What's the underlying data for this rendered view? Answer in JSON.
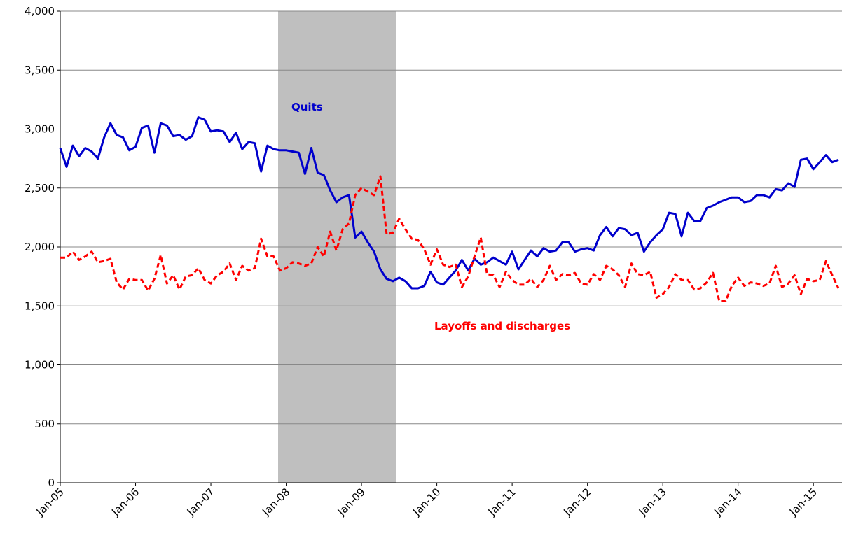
{
  "chart_data": {
    "type": "line",
    "categories": [
      "Jan-05",
      null,
      null,
      null,
      null,
      null,
      null,
      null,
      null,
      null,
      null,
      null,
      "Jan-06",
      null,
      null,
      null,
      null,
      null,
      null,
      null,
      null,
      null,
      null,
      null,
      "Jan-07",
      null,
      null,
      null,
      null,
      null,
      null,
      null,
      null,
      null,
      null,
      null,
      "Jan-08",
      null,
      null,
      null,
      null,
      null,
      null,
      null,
      null,
      null,
      null,
      null,
      "Jan-09",
      null,
      null,
      null,
      null,
      null,
      null,
      null,
      null,
      null,
      null,
      null,
      "Jan-10",
      null,
      null,
      null,
      null,
      null,
      null,
      null,
      null,
      null,
      null,
      null,
      "Jan-11",
      null,
      null,
      null,
      null,
      null,
      null,
      null,
      null,
      null,
      null,
      null,
      "Jan-12",
      null,
      null,
      null,
      null,
      null,
      null,
      null,
      null,
      null,
      null,
      null,
      "Jan-13",
      null,
      null,
      null,
      null,
      null,
      null,
      null,
      null,
      null,
      null,
      null,
      "Jan-14",
      null,
      null,
      null,
      null,
      null,
      null,
      null,
      null,
      null,
      null,
      null,
      "Jan-15",
      null,
      null,
      null,
      null
    ],
    "series": [
      {
        "name": "Quits",
        "color": "#0000cc",
        "dash": false,
        "values": [
          2840,
          2680,
          2860,
          2770,
          2840,
          2810,
          2750,
          2930,
          3050,
          2950,
          2930,
          2820,
          2850,
          3010,
          3030,
          2800,
          3050,
          3030,
          2940,
          2950,
          2910,
          2940,
          3100,
          3080,
          2980,
          2990,
          2980,
          2890,
          2970,
          2830,
          2890,
          2880,
          2640,
          2860,
          2830,
          2820,
          2820,
          2810,
          2800,
          2620,
          2840,
          2630,
          2610,
          2480,
          2380,
          2420,
          2440,
          2080,
          2130,
          2040,
          1960,
          1810,
          1730,
          1710,
          1740,
          1710,
          1650,
          1650,
          1670,
          1790,
          1700,
          1680,
          1740,
          1800,
          1890,
          1800,
          1900,
          1850,
          1870,
          1910,
          1880,
          1850,
          1960,
          1810,
          1890,
          1970,
          1920,
          1990,
          1960,
          1970,
          2040,
          2040,
          1960,
          1980,
          1990,
          1970,
          2100,
          2170,
          2090,
          2160,
          2150,
          2100,
          2120,
          1960,
          2040,
          2100,
          2150,
          2290,
          2280,
          2090,
          2290,
          2220,
          2220,
          2330,
          2350,
          2380,
          2400,
          2420,
          2420,
          2380,
          2390,
          2440,
          2440,
          2420,
          2490,
          2480,
          2540,
          2510,
          2740,
          2750,
          2660,
          2720,
          2780,
          2720,
          2740
        ]
      },
      {
        "name": "Layoffs and discharges",
        "color": "#ff0000",
        "dash": true,
        "values": [
          1910,
          1910,
          1960,
          1890,
          1920,
          1960,
          1870,
          1880,
          1900,
          1700,
          1640,
          1730,
          1720,
          1720,
          1630,
          1730,
          1930,
          1690,
          1760,
          1640,
          1750,
          1760,
          1820,
          1720,
          1690,
          1760,
          1790,
          1860,
          1720,
          1840,
          1800,
          1820,
          2070,
          1920,
          1920,
          1800,
          1820,
          1870,
          1860,
          1840,
          1860,
          2000,
          1920,
          2130,
          1970,
          2150,
          2200,
          2440,
          2500,
          2470,
          2440,
          2600,
          2110,
          2120,
          2240,
          2150,
          2070,
          2060,
          1980,
          1850,
          1980,
          1850,
          1830,
          1850,
          1660,
          1750,
          1920,
          2080,
          1770,
          1760,
          1660,
          1790,
          1720,
          1680,
          1680,
          1730,
          1660,
          1720,
          1840,
          1720,
          1770,
          1760,
          1780,
          1690,
          1680,
          1770,
          1720,
          1840,
          1810,
          1760,
          1660,
          1860,
          1770,
          1760,
          1790,
          1570,
          1600,
          1660,
          1770,
          1720,
          1720,
          1640,
          1650,
          1700,
          1780,
          1540,
          1540,
          1670,
          1740,
          1670,
          1700,
          1690,
          1670,
          1690,
          1840,
          1660,
          1690,
          1760,
          1600,
          1730,
          1710,
          1720,
          1880,
          1760,
          1650
        ]
      }
    ],
    "ylim": [
      0,
      4000
    ],
    "yticks": [
      0,
      500,
      {
        "value": 1000,
        "label": "1,000"
      },
      {
        "value": 1500,
        "label": "1,500"
      },
      {
        "value": 2000,
        "label": "2,000"
      },
      {
        "value": 2500,
        "label": "2,500"
      },
      {
        "value": 3000,
        "label": "3,000"
      },
      {
        "value": 3500,
        "label": "3,500"
      },
      {
        "value": 4000,
        "label": "4,000"
      }
    ],
    "grid": true
  }
}
